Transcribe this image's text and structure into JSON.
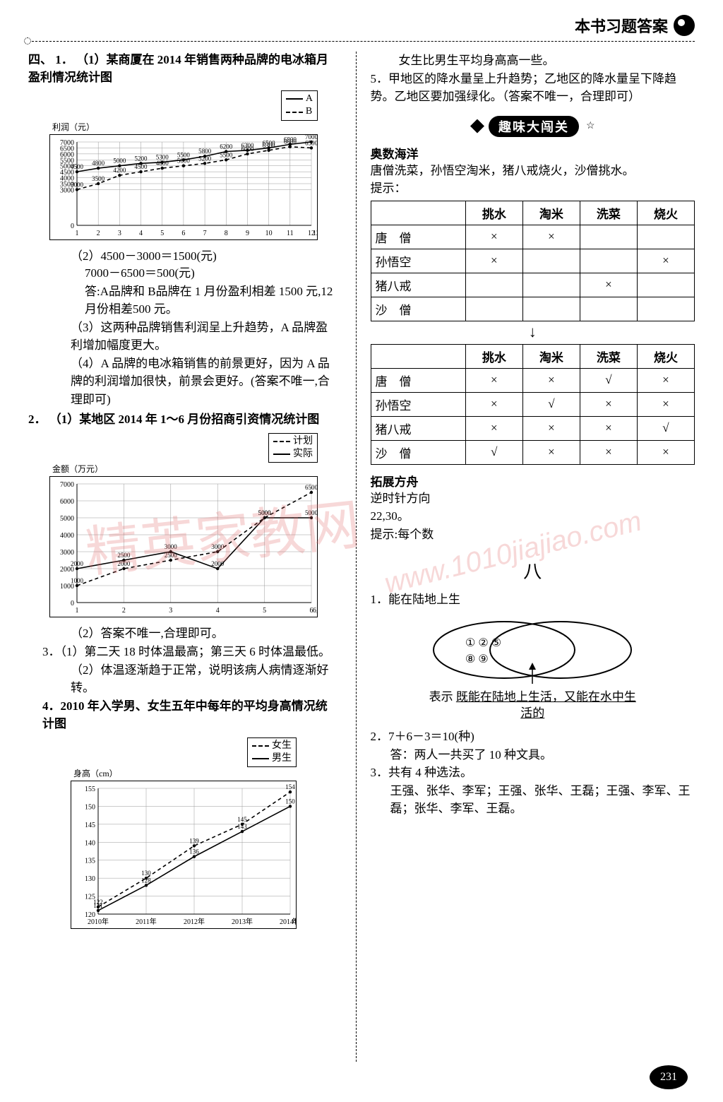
{
  "header": {
    "title": "本书习题答案"
  },
  "left": {
    "sec4_label": "四、",
    "q1": {
      "num": "1．",
      "p1": "（1）某商厦在 2014 年销售两种品牌的电冰箱月盈利情况统计图",
      "chart1": {
        "type": "line",
        "legend": {
          "a": "A",
          "b": "B"
        },
        "y_label": "利润（元）",
        "x_label": "12月份",
        "x_categories": [
          "1",
          "2",
          "3",
          "4",
          "5",
          "6",
          "7",
          "8",
          "9",
          "10",
          "11",
          "12"
        ],
        "y_ticks": [
          0,
          3000,
          3500,
          4000,
          4500,
          5000,
          5500,
          6000,
          6500,
          7000
        ],
        "series": {
          "A": {
            "color": "#000000",
            "dash": "solid",
            "values": [
              4500,
              4800,
              5000,
              5200,
              5300,
              5500,
              5800,
              6200,
              6300,
              6500,
              6800,
              7000
            ],
            "labels": [
              "4500",
              "4800",
              "5000",
              "5200",
              "5300",
              "5500",
              "5800",
              "6200",
              "6300",
              "6500",
              "6800",
              "7000"
            ]
          },
          "B": {
            "color": "#000000",
            "dash": "dashed",
            "values": [
              3000,
              3500,
              4200,
              4500,
              4800,
              5000,
              5200,
              5500,
              6000,
              6300,
              6600,
              6500
            ],
            "labels": [
              "3000",
              "3500",
              "4200",
              "4500",
              "4800",
              "5000",
              "5200",
              "5500",
              "6000",
              "6300",
              "6600",
              "6500"
            ]
          }
        }
      },
      "p2a": "（2）4500－3000＝1500(元)",
      "p2b": "7000－6500＝500(元)",
      "p2c": "答:A品牌和 B品牌在 1 月份盈利相差 1500 元,12 月份相差500 元。",
      "p3": "（3）这两种品牌销售利润呈上升趋势，A 品牌盈利增加幅度更大。",
      "p4": "（4）A 品牌的电冰箱销售的前景更好，因为 A 品牌的利润增加很快，前景会更好。(答案不唯一,合理即可)"
    },
    "q2": {
      "num": "2．",
      "p1": "（1）某地区 2014 年 1～6 月份招商引资情况统计图",
      "chart2": {
        "type": "line",
        "legend": {
          "plan": "计划",
          "actual": "实际"
        },
        "y_label": "金额（万元）",
        "x_label": "6月份",
        "x_categories": [
          "1",
          "2",
          "3",
          "4",
          "5",
          "6"
        ],
        "y_ticks": [
          0,
          1000,
          2000,
          3000,
          4000,
          5000,
          6000,
          7000
        ],
        "series": {
          "plan": {
            "dash": "dashed",
            "values": [
              1000,
              2000,
              2500,
              3000,
              5000,
              6500
            ],
            "labels": [
              "1000",
              "2000",
              "2500",
              "3000",
              "5000",
              "6500"
            ]
          },
          "actual": {
            "dash": "solid",
            "values": [
              2000,
              2500,
              3000,
              2000,
              5000,
              5000
            ],
            "labels": [
              "2000",
              "2500",
              "3000",
              "2000",
              "5000",
              "5000"
            ]
          }
        }
      },
      "p2": "（2）答案不唯一,合理即可。"
    },
    "q3a": "3．（1）第二天 18 时体温最高；第三天 6 时体温最低。",
    "q3b": "（2）体温逐渐趋于正常，说明该病人病情逐渐好转。",
    "q4title": "4．2010 年入学男、女生五年中每年的平均身高情况统计图",
    "chart3": {
      "type": "line",
      "legend": {
        "girl": "女生",
        "boy": "男生"
      },
      "y_label": "身高（cm）",
      "x_label": "年份",
      "x_categories": [
        "2010年",
        "2011年",
        "2012年",
        "2013年",
        "2014年"
      ],
      "y_ticks": [
        120,
        125,
        130,
        135,
        140,
        145,
        150,
        155
      ],
      "series": {
        "girl": {
          "dash": "dashed",
          "values": [
            122,
            130,
            139,
            145,
            154
          ],
          "labels": [
            "122",
            "130",
            "139",
            "145",
            "154"
          ]
        },
        "boy": {
          "dash": "solid",
          "values": [
            121,
            128,
            136,
            143,
            150
          ],
          "labels": [
            "121",
            "128",
            "136",
            "143",
            "150"
          ]
        }
      }
    }
  },
  "right": {
    "top1": "女生比男生平均身高高一些。",
    "q5": "5．甲地区的降水量呈上升趋势；乙地区的降水量呈下降趋势。乙地区要加强绿化。（答案不唯一，合理即可）",
    "banner": "趣味大闯关",
    "aoshu_head": "奥数海洋",
    "aoshu1": "唐僧洗菜，孙悟空淘米，猪八戒烧火，沙僧挑水。",
    "aoshu2": "提示：",
    "table1": {
      "cols": [
        "",
        "挑水",
        "淘米",
        "洗菜",
        "烧火"
      ],
      "rows": [
        [
          "唐　僧",
          "×",
          "×",
          "",
          ""
        ],
        [
          "孙悟空",
          "×",
          "",
          "",
          "×"
        ],
        [
          "猪八戒",
          "",
          "",
          "×",
          ""
        ],
        [
          "沙　僧",
          "",
          "",
          "",
          ""
        ]
      ]
    },
    "table2": {
      "cols": [
        "",
        "挑水",
        "淘米",
        "洗菜",
        "烧火"
      ],
      "rows": [
        [
          "唐　僧",
          "×",
          "×",
          "√",
          "×"
        ],
        [
          "孙悟空",
          "×",
          "√",
          "×",
          "×"
        ],
        [
          "猪八戒",
          "×",
          "×",
          "×",
          "√"
        ],
        [
          "沙　僧",
          "√",
          "×",
          "×",
          "×"
        ]
      ]
    },
    "tuozhan_head": "拓展方舟",
    "tuozhan1": "逆时针方向",
    "tuozhan2": "22,30。",
    "tuozhan3": "提示:每个数",
    "eight_head": "八",
    "e1": "1．能在陆地上生",
    "venn": {
      "left_nums": "① ② ⑤",
      "left_nums2": "⑧ ⑨",
      "caption1": "表示",
      "caption2": "既能在陆地上生活，又能在水中生活的"
    },
    "e2a": "2．7＋6－3＝10(种)",
    "e2b": "答：两人一共买了 10 种文具。",
    "e3a": "3．共有 4 种选法。",
    "e3b": "王强、张华、李军；王强、张华、王磊；王强、李军、王磊；张华、李军、王磊。"
  },
  "page_number": "231",
  "watermark1": "精英家教网",
  "watermark2": "www.1010jiajiao.com"
}
